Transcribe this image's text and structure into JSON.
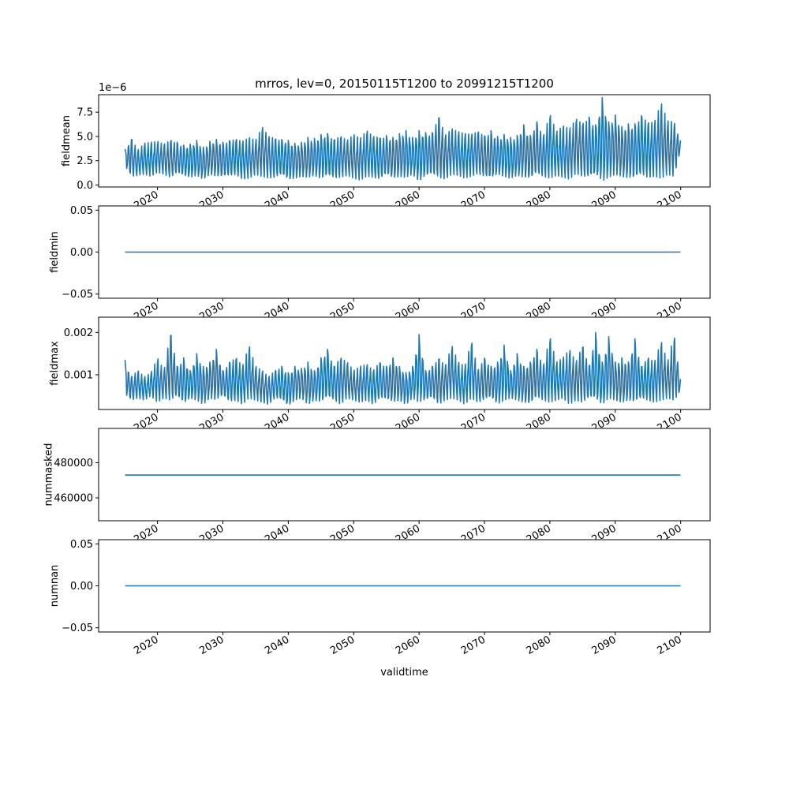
{
  "figure": {
    "title": "mrros, lev=0, 20150115T1200 to 20991215T1200",
    "xlabel": "validtime"
  },
  "chart_data": [
    {
      "type": "line",
      "ylabel": "fieldmean",
      "offset_text": "1e−6",
      "ylim": [
        -0.2,
        9.3
      ],
      "yticks": [
        0.0,
        2.5,
        5.0,
        7.5
      ],
      "ytick_labels": [
        "0.0",
        "2.5",
        "5.0",
        "7.5"
      ],
      "series": [
        {
          "color": "#1f77b4",
          "x": [
            2015.04,
            2016.0,
            2017.0,
            2018.0,
            2019.0,
            2020.0,
            2021.0,
            2022.0,
            2023.0,
            2024.0,
            2025.0,
            2026.0,
            2027.0,
            2028.0,
            2029.0,
            2030.0,
            2031.0,
            2032.0,
            2033.0,
            2034.0,
            2035.0,
            2036.0,
            2037.0,
            2038.0,
            2039.0,
            2040.0,
            2041.0,
            2042.0,
            2043.0,
            2044.0,
            2045.0,
            2046.0,
            2047.0,
            2048.0,
            2049.0,
            2050.0,
            2051.0,
            2052.0,
            2053.0,
            2054.0,
            2055.0,
            2056.0,
            2057.0,
            2058.0,
            2059.0,
            2060.0,
            2061.0,
            2062.0,
            2063.0,
            2064.0,
            2065.0,
            2066.0,
            2067.0,
            2068.0,
            2069.0,
            2070.0,
            2071.0,
            2072.0,
            2073.0,
            2074.0,
            2075.0,
            2076.0,
            2077.0,
            2078.0,
            2079.0,
            2080.0,
            2081.0,
            2082.0,
            2083.0,
            2084.0,
            2085.0,
            2086.0,
            2087.0,
            2088.0,
            2089.0,
            2090.0,
            2091.0,
            2092.0,
            2093.0,
            2094.0,
            2095.0,
            2096.0,
            2097.0,
            2098.0,
            2099.0,
            2099.96
          ],
          "y": [
            3.7,
            4.8,
            3.6,
            4.3,
            4.4,
            4.5,
            4.2,
            4.6,
            4.4,
            4.1,
            4.2,
            4.6,
            3.9,
            4.5,
            4.7,
            4.4,
            4.6,
            4.7,
            4.5,
            4.9,
            4.6,
            6.0,
            5.0,
            4.8,
            4.7,
            4.6,
            4.3,
            4.4,
            4.9,
            4.8,
            5.2,
            5.3,
            4.7,
            5.0,
            4.6,
            5.2,
            4.8,
            5.6,
            5.0,
            4.9,
            5.1,
            4.9,
            5.3,
            5.6,
            4.9,
            5.6,
            5.4,
            5.4,
            7.1,
            5.1,
            5.8,
            5.5,
            5.3,
            5.2,
            5.5,
            5.1,
            5.6,
            5.0,
            5.2,
            4.9,
            5.1,
            6.2,
            5.1,
            6.5,
            5.0,
            7.3,
            5.5,
            6.1,
            5.8,
            6.8,
            6.3,
            7.0,
            6.2,
            9.0,
            6.5,
            7.2,
            6.0,
            6.3,
            6.3,
            7.2,
            6.4,
            6.5,
            8.5,
            6.6,
            6.5,
            4.6
          ],
          "y_lower": [
            2.0,
            0.9,
            1.0,
            1.1,
            0.9,
            1.3,
            1.1,
            0.8,
            1.2,
            0.9,
            0.8,
            1.0,
            0.6,
            1.1,
            0.9,
            0.8,
            0.9,
            1.1,
            0.6,
            0.7,
            1.1,
            0.9,
            0.7,
            0.8,
            1.0,
            0.5,
            0.7,
            0.9,
            0.8,
            1.0,
            0.6,
            0.9,
            0.7,
            0.8,
            1.0,
            0.7,
            0.5,
            0.9,
            0.8,
            0.6,
            1.0,
            0.7,
            0.9,
            0.8,
            1.1,
            0.4,
            0.9,
            1.0,
            0.8,
            0.6,
            1.1,
            1.0,
            0.7,
            0.9,
            1.2,
            0.8,
            0.6,
            1.1,
            0.9,
            0.7,
            1.0,
            0.8,
            0.6,
            1.1,
            0.9,
            0.7,
            1.0,
            0.8,
            0.6,
            1.2,
            0.9,
            0.7,
            1.0,
            0.4,
            0.8,
            1.1,
            0.9,
            0.7,
            0.6,
            1.0,
            0.8,
            0.9,
            0.7,
            1.1,
            0.9,
            3.5
          ]
        }
      ]
    },
    {
      "type": "line",
      "ylabel": "fieldmin",
      "ylim": [
        -0.055,
        0.055
      ],
      "yticks": [
        -0.05,
        0.0,
        0.05
      ],
      "ytick_labels": [
        "−0.05",
        "0.00",
        "0.05"
      ],
      "series": [
        {
          "color": "#1f77b4",
          "x": [
            2015.04,
            2099.96
          ],
          "y": [
            0.0,
            0.0
          ]
        }
      ]
    },
    {
      "type": "line",
      "ylabel": "fieldmax",
      "ylim": [
        0.00018,
        0.00236
      ],
      "yticks": [
        0.001,
        0.002
      ],
      "ytick_labels": [
        "0.001",
        "0.002"
      ],
      "series": [
        {
          "color": "#1f77b4",
          "x": [
            2015.04,
            2016.0,
            2017.0,
            2018.0,
            2019.0,
            2020.0,
            2021.0,
            2022.0,
            2023.0,
            2024.0,
            2025.0,
            2026.0,
            2027.0,
            2028.0,
            2029.0,
            2030.0,
            2031.0,
            2032.0,
            2033.0,
            2034.0,
            2035.0,
            2036.0,
            2037.0,
            2038.0,
            2039.0,
            2040.0,
            2041.0,
            2042.0,
            2043.0,
            2044.0,
            2045.0,
            2046.0,
            2047.0,
            2048.0,
            2049.0,
            2050.0,
            2051.0,
            2052.0,
            2053.0,
            2054.0,
            2055.0,
            2056.0,
            2057.0,
            2058.0,
            2059.0,
            2060.0,
            2061.0,
            2062.0,
            2063.0,
            2064.0,
            2065.0,
            2066.0,
            2067.0,
            2068.0,
            2069.0,
            2070.0,
            2071.0,
            2072.0,
            2073.0,
            2074.0,
            2075.0,
            2076.0,
            2077.0,
            2078.0,
            2079.0,
            2080.0,
            2081.0,
            2082.0,
            2083.0,
            2084.0,
            2085.0,
            2086.0,
            2087.0,
            2088.0,
            2089.0,
            2090.0,
            2091.0,
            2092.0,
            2093.0,
            2094.0,
            2095.0,
            2096.0,
            2097.0,
            2098.0,
            2099.0,
            2099.96
          ],
          "y": [
            0.00135,
            0.00095,
            0.0011,
            0.00095,
            0.00105,
            0.0014,
            0.0011,
            0.002,
            0.0012,
            0.0014,
            0.0011,
            0.0015,
            0.0012,
            0.0013,
            0.0016,
            0.0011,
            0.0013,
            0.0014,
            0.0012,
            0.0017,
            0.0012,
            0.0011,
            0.00095,
            0.0011,
            0.0012,
            0.00105,
            0.0012,
            0.00115,
            0.0013,
            0.0011,
            0.0014,
            0.0016,
            0.0012,
            0.0014,
            0.0013,
            0.0011,
            0.0012,
            0.00125,
            0.0011,
            0.0013,
            0.0012,
            0.0014,
            0.0012,
            0.00105,
            0.0012,
            0.00195,
            0.0011,
            0.0012,
            0.0014,
            0.0012,
            0.0017,
            0.0013,
            0.0012,
            0.0018,
            0.0011,
            0.0014,
            0.0012,
            0.0013,
            0.0017,
            0.0011,
            0.0015,
            0.0012,
            0.0013,
            0.0016,
            0.0012,
            0.0019,
            0.0013,
            0.0014,
            0.0016,
            0.0013,
            0.0017,
            0.0012,
            0.002,
            0.0013,
            0.0019,
            0.0013,
            0.0014,
            0.0013,
            0.00185,
            0.0012,
            0.0014,
            0.0013,
            0.0018,
            0.0013,
            0.00195,
            0.0009
          ],
          "y_lower": [
            0.00055,
            0.0004,
            0.00045,
            0.0004,
            0.0005,
            0.00035,
            0.00045,
            0.0004,
            0.0005,
            0.0003,
            0.00045,
            0.0004,
            0.0003,
            0.00045,
            0.0004,
            0.0005,
            0.00035,
            0.0004,
            0.0003,
            0.00045,
            0.0004,
            0.00035,
            0.0003,
            0.00045,
            0.0004,
            0.00025,
            0.0004,
            0.00045,
            0.0003,
            0.0004,
            0.00035,
            0.00045,
            0.0004,
            0.0003,
            0.00045,
            0.0004,
            0.00035,
            0.0004,
            0.0003,
            0.00045,
            0.0004,
            0.00035,
            0.0004,
            0.0003,
            0.00045,
            0.00035,
            0.0004,
            0.00045,
            0.0003,
            0.0004,
            0.00045,
            0.0004,
            0.0003,
            0.00045,
            0.00035,
            0.0004,
            0.00045,
            0.0003,
            0.0004,
            0.00045,
            0.0004,
            0.00035,
            0.0003,
            0.00045,
            0.0004,
            0.00035,
            0.0004,
            0.00045,
            0.0003,
            0.0004,
            0.00035,
            0.00045,
            0.0004,
            0.0003,
            0.00045,
            0.0004,
            0.00035,
            0.0004,
            0.0003,
            0.00045,
            0.0004,
            0.00035,
            0.0004,
            0.00045,
            0.0004,
            0.0006
          ]
        }
      ]
    },
    {
      "type": "line",
      "ylabel": "nummasked",
      "ylim": [
        447000,
        499500
      ],
      "yticks": [
        460000,
        480000
      ],
      "ytick_labels": [
        "460000",
        "480000"
      ],
      "series": [
        {
          "color": "#1f77b4",
          "x": [
            2015.04,
            2099.96
          ],
          "y": [
            473000,
            473000
          ]
        }
      ]
    },
    {
      "type": "line",
      "ylabel": "numnan",
      "ylim": [
        -0.055,
        0.055
      ],
      "yticks": [
        -0.05,
        0.0,
        0.05
      ],
      "ytick_labels": [
        "−0.05",
        "0.00",
        "0.05"
      ],
      "series": [
        {
          "color": "#1f77b4",
          "x": [
            2015.04,
            2099.96
          ],
          "y": [
            0.0,
            0.0
          ]
        }
      ]
    }
  ],
  "x_axis": {
    "xlim": [
      2011.0,
      2104.5
    ],
    "ticks": [
      2020,
      2030,
      2040,
      2050,
      2060,
      2070,
      2080,
      2090,
      2100
    ],
    "tick_labels": [
      "2020",
      "2030",
      "2040",
      "2050",
      "2060",
      "2070",
      "2080",
      "2090",
      "2100"
    ]
  }
}
